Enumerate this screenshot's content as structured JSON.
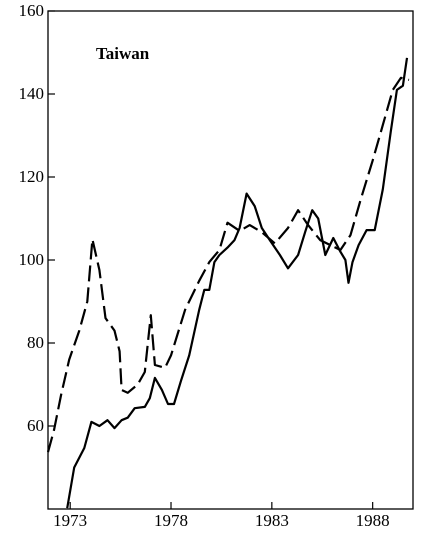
{
  "chart_data": {
    "type": "line",
    "title": "Taiwan",
    "xlim": [
      1971.9,
      1990
    ],
    "ylim": [
      40,
      160
    ],
    "xticks": [
      1973,
      1978,
      1983,
      1988
    ],
    "yticks": [
      60,
      80,
      100,
      120,
      140,
      160
    ],
    "series": [
      {
        "color": "#000000",
        "dashed": false,
        "x": [
          1972.85,
          1973.2,
          1973.7,
          1974.05,
          1974.45,
          1974.85,
          1975.2,
          1975.55,
          1975.85,
          1976.2,
          1976.7,
          1976.95,
          1977.2,
          1977.55,
          1977.85,
          1978.15,
          1978.5,
          1978.9,
          1979.4,
          1979.65,
          1979.9,
          1980.15,
          1980.4,
          1980.8,
          1981.15,
          1981.4,
          1981.75,
          1982.15,
          1982.5,
          1982.9,
          1983.4,
          1983.8,
          1984.3,
          1984.65,
          1985,
          1985.3,
          1985.65,
          1986.05,
          1986.4,
          1986.65,
          1986.8,
          1987,
          1987.3,
          1987.7,
          1988.1,
          1988.5,
          1988.9,
          1989.2,
          1989.5,
          1989.7
        ],
        "values": [
          40.2,
          50,
          54.7,
          61,
          60,
          61.4,
          59.5,
          61.4,
          62,
          64.3,
          64.6,
          66.7,
          71.6,
          68.7,
          65.3,
          65.3,
          71,
          77,
          88,
          92.8,
          92.8,
          99.5,
          101.2,
          103,
          104.8,
          107.7,
          116,
          113,
          107.7,
          104.8,
          101.2,
          98,
          101.2,
          106.7,
          112,
          110,
          101.2,
          105.3,
          102,
          100,
          94.5,
          99.5,
          103.6,
          107.2,
          107.2,
          117,
          131,
          141,
          142,
          148.7
        ]
      },
      {
        "color": "#000000",
        "dashed": true,
        "x": [
          1971.9,
          1972.2,
          1972.55,
          1972.95,
          1973.45,
          1973.85,
          1974.1,
          1974.45,
          1974.75,
          1975.2,
          1975.45,
          1975.55,
          1975.85,
          1976.35,
          1976.7,
          1977,
          1977.2,
          1977.7,
          1978,
          1978.7,
          1979.4,
          1979.9,
          1980.4,
          1980.8,
          1981.4,
          1981.9,
          1982.5,
          1983.15,
          1983.8,
          1984.3,
          1984.8,
          1985.4,
          1985.9,
          1986.4,
          1986.9,
          1987.4,
          1988,
          1988.5,
          1989,
          1989.4,
          1989.8
        ],
        "values": [
          53.7,
          59,
          67.5,
          76,
          83,
          90,
          105,
          97.6,
          86,
          83,
          78,
          68.7,
          68,
          70,
          73,
          86.7,
          74.7,
          74,
          77,
          88,
          95,
          99.5,
          102.4,
          109,
          107,
          108.4,
          106.7,
          104,
          107.7,
          112,
          108.4,
          104.8,
          103.6,
          102.4,
          106,
          114.5,
          124,
          132.5,
          141,
          143.9,
          143.4
        ]
      }
    ]
  }
}
